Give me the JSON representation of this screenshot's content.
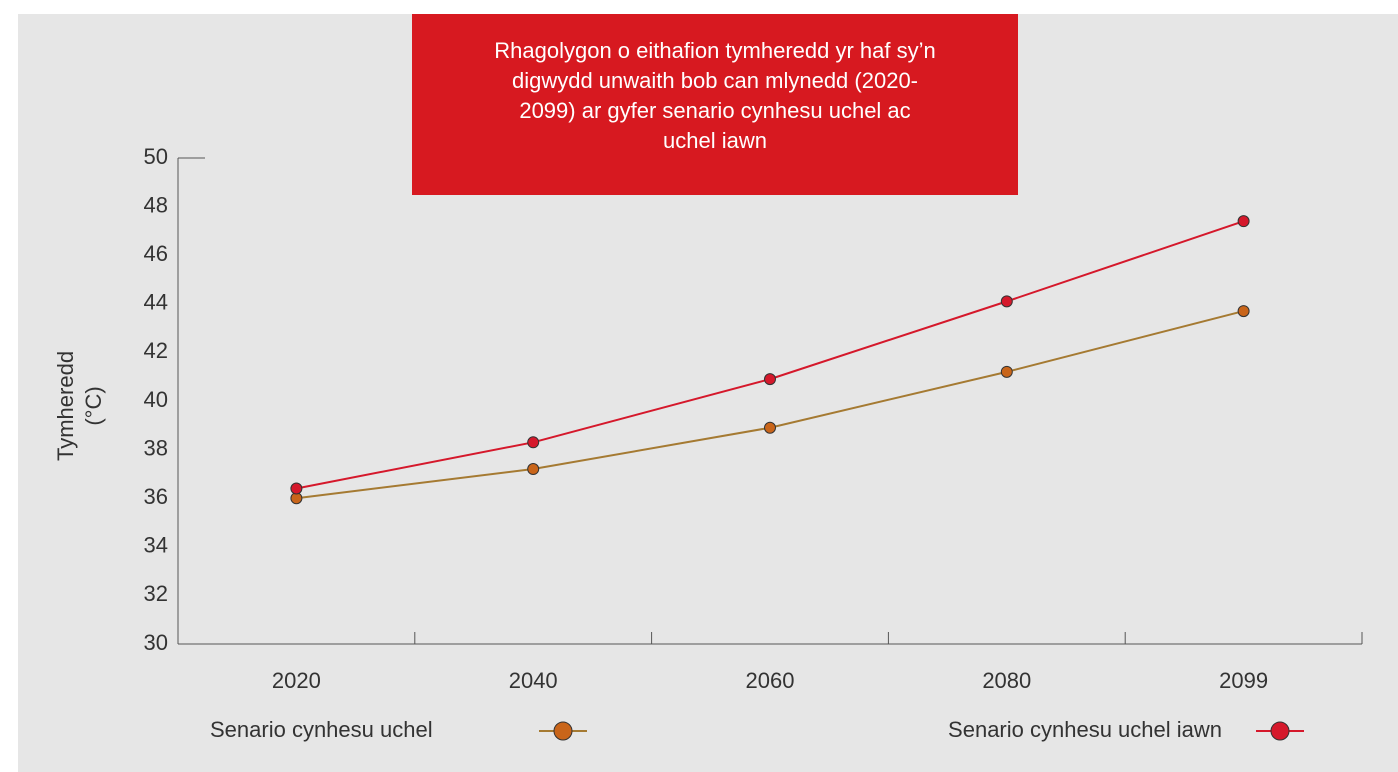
{
  "chart_data": {
    "type": "line",
    "title": "Rhagolygon o eithafion tymheredd yr haf sy’n digwydd unwaith bob can mlynedd (2020-2099) ar gyfer senario cynhesu uchel ac uchel iawn",
    "ylabel": "Tymheredd (°C)",
    "categories": [
      "2020",
      "2040",
      "2060",
      "2080",
      "2099"
    ],
    "series": [
      {
        "name": "Senario cynhesu uchel",
        "color": "#a57a32",
        "marker_color": "#c9651a",
        "values": [
          36.0,
          37.2,
          38.9,
          41.2,
          43.7
        ]
      },
      {
        "name": "Senario cynhesu uchel iawn",
        "color": "#d5182b",
        "marker_color": "#d5182b",
        "values": [
          36.4,
          38.3,
          40.9,
          44.1,
          47.4
        ]
      }
    ],
    "ylim": [
      30,
      50
    ],
    "yticks": [
      30,
      32,
      34,
      36,
      38,
      40,
      42,
      44,
      46,
      48,
      50
    ]
  }
}
